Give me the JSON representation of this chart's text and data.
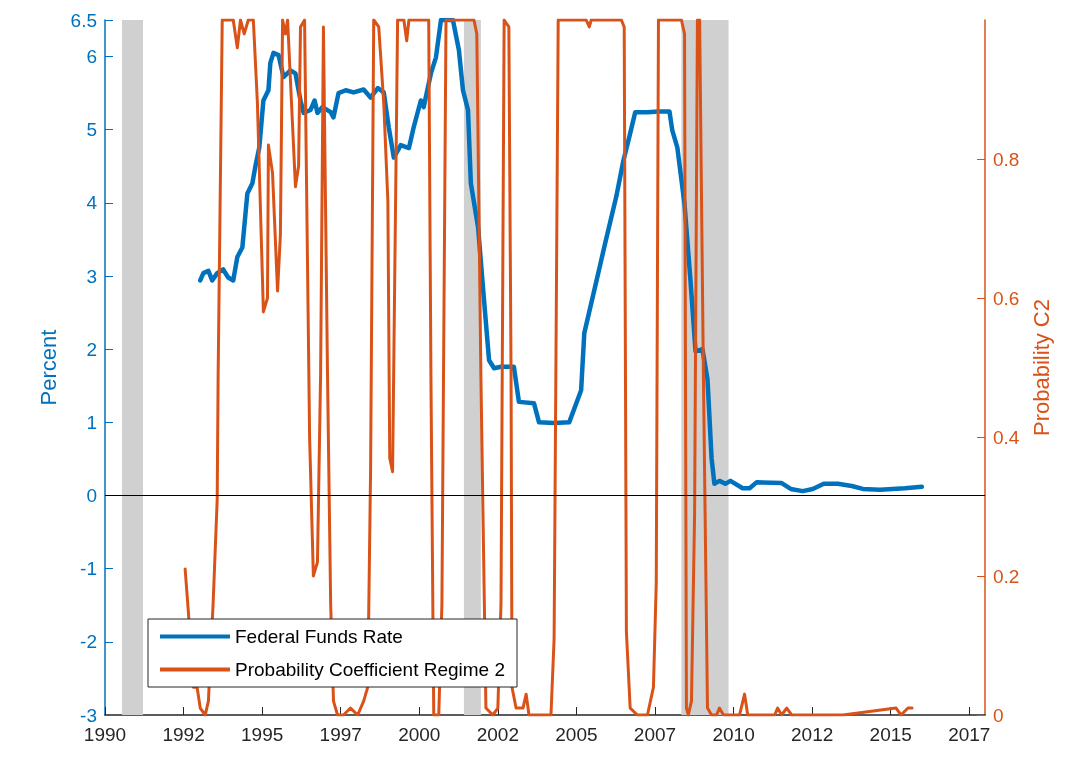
{
  "chart_data": {
    "type": "line",
    "xlim": [
      1990,
      2018
    ],
    "xticks": [
      1990,
      {
        "value": 1992.5,
        "label": "1992"
      },
      1995,
      {
        "value": 1997.5,
        "label": "1997"
      },
      2000,
      {
        "value": 2002.5,
        "label": "2002"
      },
      2005,
      {
        "value": 2007.5,
        "label": "2007"
      },
      2010,
      {
        "value": 2012.5,
        "label": "2012"
      },
      2015,
      {
        "value": 2017.5,
        "label": "2017"
      }
    ],
    "ylabel": "Percent",
    "y2label": "Probability C2",
    "ylim": [
      -3,
      6.5
    ],
    "yticks": [
      -3,
      -2,
      -1,
      0,
      1,
      2,
      3,
      4,
      5,
      6,
      6.5
    ],
    "y2lim": [
      0,
      1
    ],
    "y2ticks": [
      0,
      0.2,
      0.4,
      0.6,
      0.8
    ],
    "grid": false,
    "legend": "bottom left",
    "marker": "none",
    "line_style": "solid",
    "bands": [
      {
        "axis": "x",
        "from": 1990.54,
        "to": 1991.21,
        "color": "#d0d0d0"
      },
      {
        "axis": "x",
        "from": 2001.42,
        "to": 2001.96,
        "color": "#d0d0d0"
      },
      {
        "axis": "x",
        "from": 2008.34,
        "to": 2009.84,
        "color": "#d0d0d0"
      }
    ],
    "ref_lines": [
      {
        "axis": "y",
        "value": 0,
        "color": "#000000"
      }
    ],
    "series": [
      {
        "name": "Federal Funds Rate",
        "color": "#0072bd",
        "axis": "y",
        "x": [
          1993.03,
          1993.13,
          1993.29,
          1993.41,
          1993.57,
          1993.76,
          1993.92,
          1994.08,
          1994.21,
          1994.37,
          1994.53,
          1994.69,
          1994.78,
          1994.91,
          1995.04,
          1995.2,
          1995.26,
          1995.36,
          1995.52,
          1995.68,
          1995.9,
          1996.06,
          1996.22,
          1996.32,
          1996.54,
          1996.67,
          1996.76,
          1996.92,
          1997.18,
          1997.27,
          1997.43,
          1997.66,
          1997.91,
          1998.23,
          1998.45,
          1998.68,
          1998.87,
          1999.03,
          1999.19,
          1999.41,
          1999.67,
          1999.82,
          2000.05,
          2000.14,
          2000.37,
          2000.53,
          2000.69,
          2001.07,
          2001.26,
          2001.39,
          2001.55,
          2001.64,
          2001.87,
          2002.06,
          2002.22,
          2002.38,
          2002.6,
          2003.01,
          2003.17,
          2003.65,
          2003.81,
          2004.29,
          2004.77,
          2005.15,
          2005.25,
          2005.69,
          2005.92,
          2006.27,
          2006.49,
          2006.71,
          2006.87,
          2007.26,
          2007.61,
          2007.96,
          2008.05,
          2008.21,
          2008.44,
          2008.63,
          2008.79,
          2009.01,
          2009.17,
          2009.3,
          2009.39,
          2009.55,
          2009.74,
          2009.9,
          2010.29,
          2010.51,
          2010.73,
          2011.53,
          2011.82,
          2012.2,
          2012.52,
          2012.87,
          2013.32,
          2013.76,
          2014.11,
          2014.66,
          2015.45,
          2015.99
        ],
        "values": [
          2.94,
          3.04,
          3.07,
          2.94,
          3.04,
          3.09,
          2.98,
          2.94,
          3.26,
          3.39,
          4.13,
          4.27,
          4.49,
          4.76,
          5.4,
          5.54,
          5.91,
          6.05,
          6.02,
          5.72,
          5.81,
          5.77,
          5.4,
          5.23,
          5.27,
          5.4,
          5.23,
          5.31,
          5.24,
          5.17,
          5.5,
          5.54,
          5.51,
          5.55,
          5.44,
          5.57,
          5.51,
          5.03,
          4.62,
          4.79,
          4.75,
          5.03,
          5.4,
          5.31,
          5.77,
          5.99,
          6.5,
          6.5,
          6.09,
          5.54,
          5.27,
          4.27,
          3.67,
          2.67,
          1.85,
          1.74,
          1.76,
          1.76,
          1.28,
          1.26,
          1.0,
          0.99,
          1.0,
          1.44,
          2.22,
          3.03,
          3.46,
          4.09,
          4.57,
          4.95,
          5.24,
          5.24,
          5.25,
          5.25,
          4.99,
          4.76,
          3.98,
          2.93,
          1.97,
          2.0,
          1.59,
          0.51,
          0.16,
          0.2,
          0.16,
          0.2,
          0.1,
          0.1,
          0.18,
          0.17,
          0.09,
          0.06,
          0.09,
          0.16,
          0.16,
          0.13,
          0.09,
          0.08,
          0.1,
          0.12
        ]
      },
      {
        "name": "Probability Coefficient Regime 2",
        "color": "#d95319",
        "axis": "y2",
        "x": [
          1992.55,
          1992.65,
          1992.81,
          1992.93,
          1993.03,
          1993.19,
          1993.29,
          1993.44,
          1993.57,
          1993.6,
          1993.73,
          1994.08,
          1994.21,
          1994.31,
          1994.43,
          1994.56,
          1994.72,
          1994.85,
          1995.04,
          1995.17,
          1995.2,
          1995.33,
          1995.49,
          1995.58,
          1995.65,
          1995.74,
          1995.81,
          1996.06,
          1996.16,
          1996.22,
          1996.35,
          1996.51,
          1996.63,
          1996.76,
          1996.86,
          1996.95,
          1997.08,
          1997.18,
          1997.27,
          1997.4,
          1997.59,
          1997.81,
          1998.04,
          1998.23,
          1998.36,
          1998.45,
          1998.55,
          1998.71,
          1998.87,
          1999.0,
          1999.06,
          1999.15,
          1999.31,
          1999.51,
          1999.6,
          1999.67,
          2000.3,
          2000.37,
          2000.46,
          2000.62,
          2000.72,
          2000.85,
          2001.74,
          2001.83,
          2001.96,
          2002.12,
          2002.34,
          2002.5,
          2002.6,
          2002.7,
          2002.85,
          2002.92,
          2002.95,
          2003.08,
          2003.3,
          2003.4,
          2003.49,
          2004.19,
          2004.29,
          2004.42,
          2005.31,
          2005.41,
          2005.47,
          2006.43,
          2006.52,
          2006.59,
          2006.71,
          2006.94,
          2007.26,
          2007.45,
          2007.54,
          2007.61,
          2008.34,
          2008.44,
          2008.47,
          2008.5,
          2008.56,
          2008.66,
          2008.76,
          2008.85,
          2008.92,
          2009.04,
          2009.17,
          2009.3,
          2009.46,
          2009.55,
          2009.68,
          2010.19,
          2010.35,
          2010.45,
          2011.31,
          2011.4,
          2011.53,
          2011.69,
          2011.85,
          2012.71,
          2012.87,
          2013.48,
          2015.17,
          2015.33,
          2015.55,
          2015.68
        ],
        "values": [
          0.21,
          0.15,
          0.04,
          0.04,
          0.01,
          0,
          0.02,
          0.16,
          0.31,
          0.49,
          1,
          1,
          0.96,
          1,
          0.98,
          1,
          1,
          0.88,
          0.58,
          0.6,
          0.82,
          0.78,
          0.61,
          0.69,
          1,
          0.98,
          1,
          0.76,
          0.79,
          0.99,
          1,
          0.4,
          0.2,
          0.22,
          0.49,
          0.99,
          0.49,
          0.16,
          0.02,
          0,
          0,
          0.01,
          0,
          0.02,
          0.04,
          0.35,
          1,
          0.99,
          0.88,
          0.74,
          0.37,
          0.35,
          1,
          1,
          0.97,
          1,
          1,
          0.49,
          0,
          0,
          0.16,
          1,
          1,
          0.98,
          0.49,
          0.01,
          0,
          0.01,
          0.16,
          1,
          0.99,
          0.49,
          0.04,
          0.01,
          0.01,
          0.03,
          0,
          0,
          0.11,
          1,
          1,
          0.99,
          1,
          1,
          0.99,
          0.12,
          0.01,
          0,
          0,
          0.04,
          0.19,
          1,
          1,
          0.98,
          0.49,
          0.01,
          0,
          0.02,
          0.29,
          1,
          1,
          0.49,
          0.01,
          0,
          0,
          0.01,
          0,
          0,
          0.03,
          0,
          0,
          0.01,
          0,
          0.01,
          0,
          0,
          0,
          0,
          0.01,
          0,
          0.01,
          0.01
        ]
      }
    ]
  }
}
